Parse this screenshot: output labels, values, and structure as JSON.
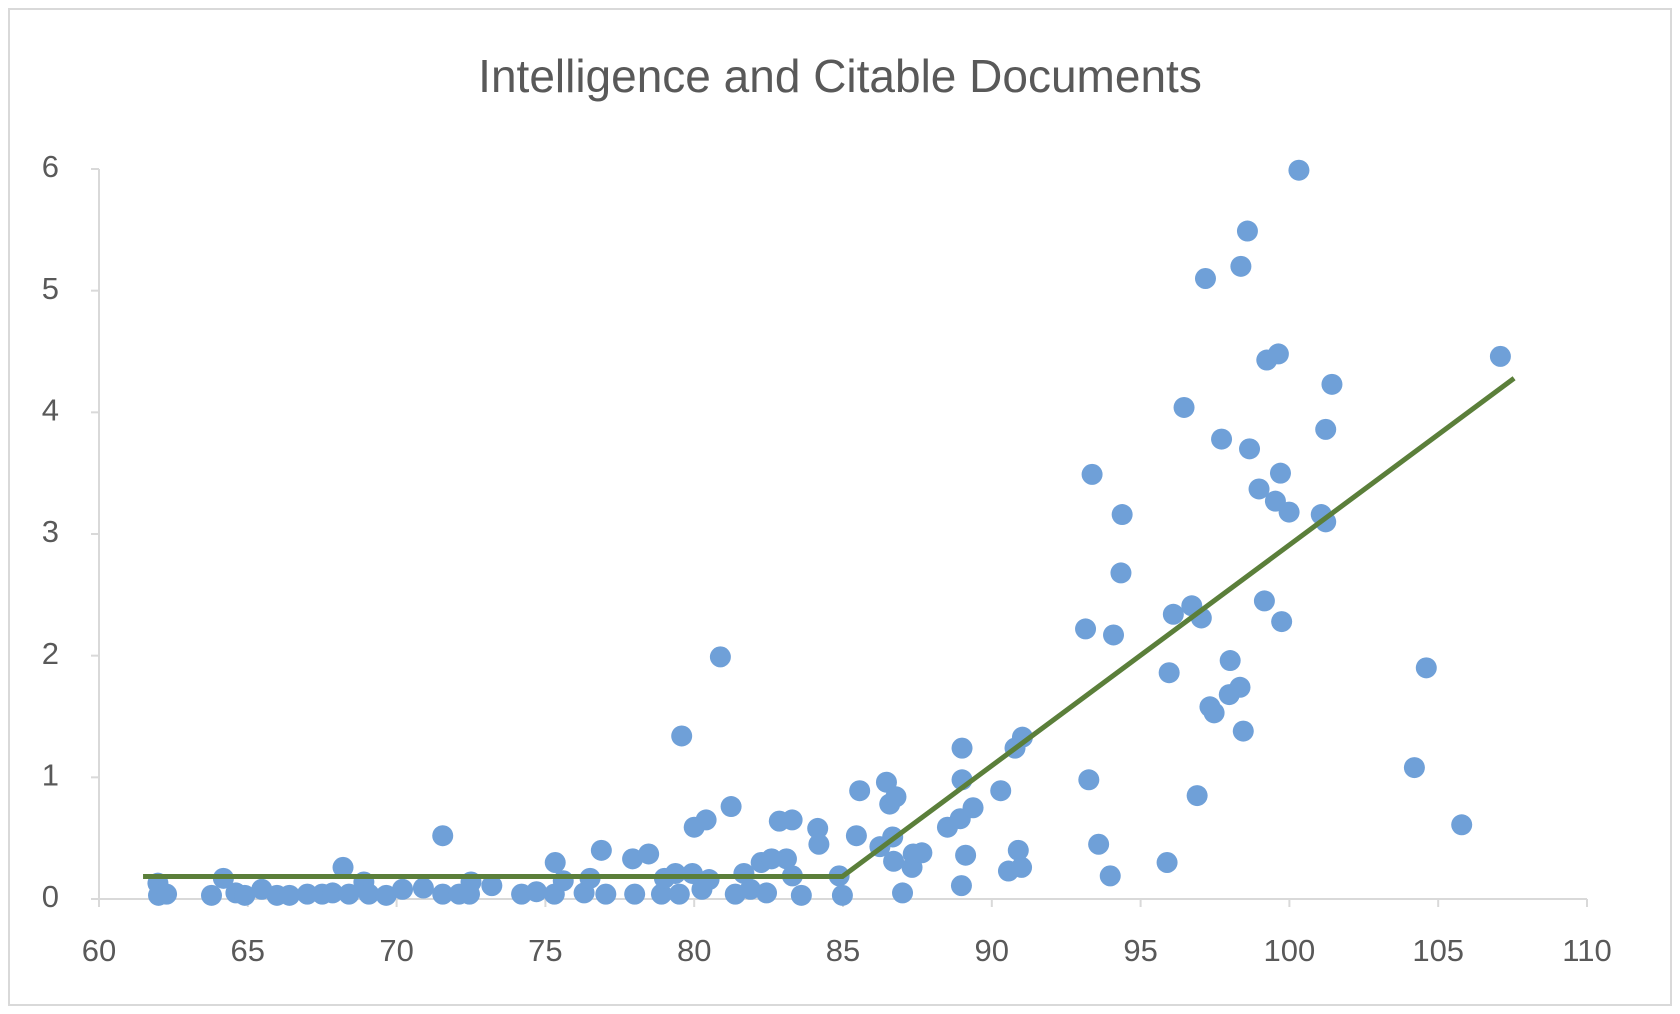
{
  "chart_data": {
    "type": "scatter",
    "title": "Intelligence and Citable Documents",
    "xlim": [
      60,
      110
    ],
    "xticks": [
      60,
      65,
      70,
      75,
      80,
      85,
      90,
      95,
      100,
      105,
      110
    ],
    "ylim": [
      0,
      6
    ],
    "yticks": [
      0,
      1,
      2,
      3,
      4,
      5,
      6
    ],
    "grid": false,
    "series": [
      {
        "type": "scatter",
        "color": "#6fa0d8",
        "x": [
          61.98,
          62.0,
          62.27,
          63.78,
          64.18,
          64.6,
          64.9,
          65.47,
          65.98,
          66.4,
          67.0,
          67.5,
          67.85,
          68.2,
          68.4,
          68.9,
          69.07,
          69.65,
          70.2,
          70.9,
          71.55,
          71.55,
          72.1,
          72.5,
          72.45,
          73.2,
          74.2,
          74.7,
          75.33,
          75.3,
          75.6,
          76.3,
          76.5,
          76.88,
          77.03,
          77.93,
          78.0,
          78.47,
          78.9,
          79.0,
          79.37,
          79.5,
          79.58,
          80.0,
          79.94,
          80.26,
          80.4,
          80.5,
          80.88,
          81.24,
          81.38,
          81.67,
          81.89,
          82.25,
          82.43,
          82.6,
          82.86,
          83.1,
          83.29,
          83.3,
          83.6,
          84.15,
          84.19,
          84.87,
          84.98,
          85.45,
          85.56,
          86.24,
          86.46,
          86.57,
          86.78,
          86.67,
          86.7,
          87.0,
          87.32,
          87.36,
          87.65,
          88.51,
          88.94,
          88.98,
          89.0,
          89.0,
          89.12,
          89.37,
          90.3,
          90.56,
          90.78,
          90.89,
          91.0,
          91.03,
          93.15,
          93.26,
          93.37,
          93.59,
          93.98,
          94.09,
          94.34,
          94.38,
          95.89,
          95.96,
          96.1,
          96.46,
          96.72,
          96.9,
          97.04,
          97.18,
          97.33,
          97.47,
          97.72,
          97.98,
          98.01,
          98.34,
          98.37,
          98.45,
          98.59,
          98.66,
          98.98,
          99.16,
          99.24,
          99.53,
          99.63,
          99.7,
          99.74,
          99.99,
          100.32,
          101.07,
          101.22,
          101.22,
          101.43,
          104.2,
          104.6,
          105.79,
          107.09
        ],
        "y": [
          0.13,
          0.03,
          0.04,
          0.03,
          0.17,
          0.05,
          0.03,
          0.08,
          0.03,
          0.03,
          0.04,
          0.04,
          0.05,
          0.26,
          0.04,
          0.14,
          0.04,
          0.03,
          0.08,
          0.09,
          0.52,
          0.04,
          0.04,
          0.14,
          0.04,
          0.11,
          0.04,
          0.06,
          0.3,
          0.04,
          0.15,
          0.05,
          0.17,
          0.4,
          0.04,
          0.33,
          0.04,
          0.37,
          0.04,
          0.17,
          0.21,
          0.04,
          1.34,
          0.59,
          0.21,
          0.08,
          0.65,
          0.16,
          1.99,
          0.76,
          0.04,
          0.21,
          0.08,
          0.3,
          0.05,
          0.33,
          0.64,
          0.33,
          0.65,
          0.19,
          0.03,
          0.58,
          0.45,
          0.19,
          0.03,
          0.52,
          0.89,
          0.43,
          0.96,
          0.78,
          0.84,
          0.51,
          0.31,
          0.05,
          0.26,
          0.37,
          0.38,
          0.59,
          0.66,
          0.11,
          1.24,
          0.98,
          0.36,
          0.75,
          0.89,
          0.23,
          1.24,
          0.4,
          0.26,
          1.33,
          2.22,
          0.98,
          3.49,
          0.45,
          0.19,
          2.17,
          2.68,
          3.16,
          0.3,
          1.86,
          2.34,
          4.04,
          2.41,
          0.85,
          2.31,
          5.1,
          1.58,
          1.53,
          3.78,
          1.68,
          1.96,
          1.74,
          5.2,
          1.38,
          5.49,
          3.7,
          3.37,
          2.45,
          4.43,
          3.27,
          4.48,
          3.5,
          2.28,
          3.18,
          5.99,
          3.16,
          3.1,
          3.86,
          4.23,
          1.08,
          1.9,
          0.61,
          4.46
        ]
      },
      {
        "type": "line",
        "color": "#5b7f3a",
        "x": [
          61.48,
          84.98,
          107.55
        ],
        "y": [
          0.185,
          0.185,
          4.28
        ]
      }
    ]
  }
}
